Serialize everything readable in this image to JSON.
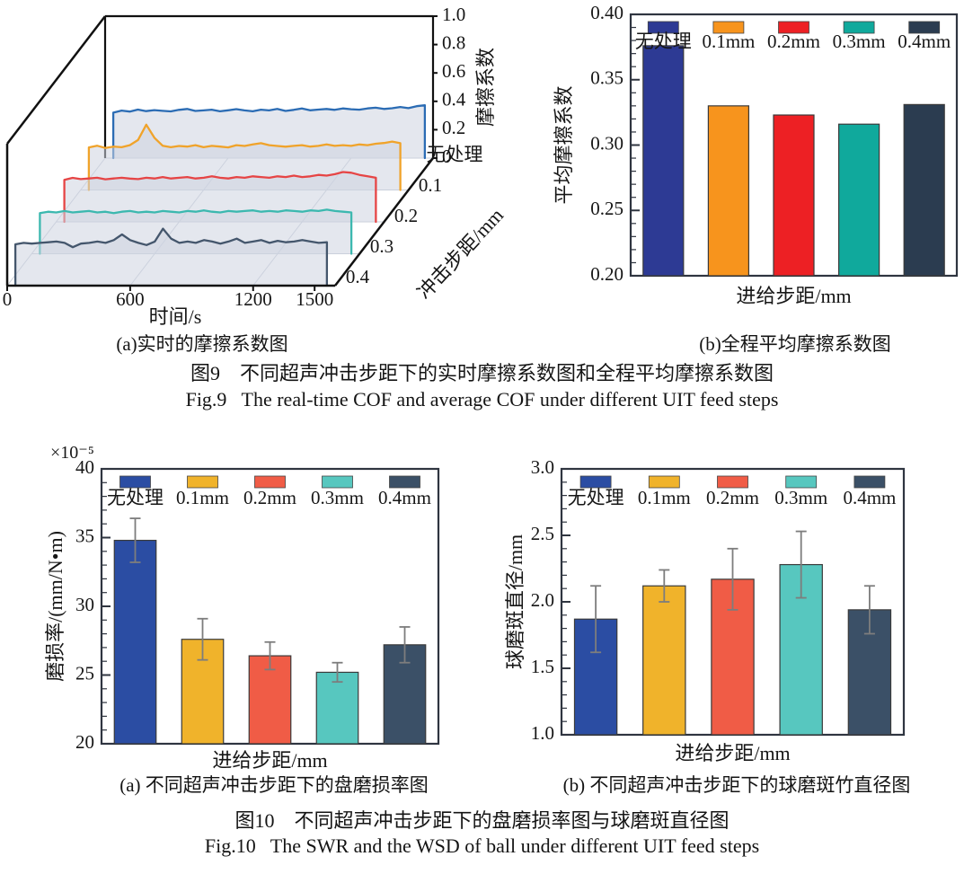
{
  "legend": {
    "labels": [
      "无处理",
      "0.1mm",
      "0.2mm",
      "0.3mm",
      "0.4mm"
    ],
    "palette_top": [
      "#2d3a94",
      "#f7941d",
      "#ed2024",
      "#10a99c",
      "#2b3c50"
    ],
    "palette_bottom": [
      "#2b4da3",
      "#f0b32b",
      "#f05c46",
      "#57c7bf",
      "#3b5067"
    ]
  },
  "captions": {
    "panel3d": "(a)实时的摩擦系数图",
    "panel_avg": "(b)全程平均摩擦系数图",
    "panel_swr": "(a) 不同超声冲击步距下的盘磨损率图",
    "panel_wsd": "(b) 不同超声冲击步距下的球磨斑竹直径图",
    "fig9_zh": "图9　不同超声冲击步距下的实时摩擦系数图和全程平均摩擦系数图",
    "fig9_en": "Fig.9   The real-time COF and average COF under different UIT feed steps",
    "fig10_zh": "图10　不同超声冲击步距下的盘磨损率图与球磨斑直径图",
    "fig10_en": "Fig.10   The SWR and the WSD of ball under different UIT feed steps"
  },
  "chart_data": [
    {
      "id": "realtime_cof",
      "type": "line",
      "subtype": "waterfall3d",
      "title": "(a)实时的摩擦系数图",
      "xlabel": "时间/s",
      "zlabel": "摩擦系数",
      "depth_label": "冲击步距/mm",
      "xlim": [
        0,
        1600
      ],
      "zlim": [
        0,
        1.0
      ],
      "xticks": [
        "0",
        "600",
        "1200",
        "1500"
      ],
      "zticks": [
        "0",
        "0.2",
        "0.4",
        "0.6",
        "0.8",
        "1.0"
      ],
      "depth_ticks": [
        "无处理",
        "0.1",
        "0.2",
        "0.3",
        "0.4"
      ],
      "t_start": 40,
      "t_step": 40,
      "series": [
        {
          "name": "无处理",
          "color": "#2b6cb4",
          "values": [
            0.32,
            0.335,
            0.328,
            0.342,
            0.331,
            0.338,
            0.333,
            0.329,
            0.34,
            0.346,
            0.332,
            0.336,
            0.341,
            0.33,
            0.337,
            0.345,
            0.336,
            0.33,
            0.341,
            0.336,
            0.346,
            0.332,
            0.34,
            0.35,
            0.337,
            0.342,
            0.346,
            0.34,
            0.35,
            0.344,
            0.341,
            0.35,
            0.355,
            0.346,
            0.351,
            0.36,
            0.352,
            0.366,
            0.372
          ]
        },
        {
          "name": "0.1",
          "color": "#f0a32a",
          "values": [
            0.3,
            0.312,
            0.296,
            0.306,
            0.301,
            0.316,
            0.352,
            0.46,
            0.368,
            0.312,
            0.301,
            0.31,
            0.306,
            0.316,
            0.301,
            0.311,
            0.306,
            0.3,
            0.316,
            0.31,
            0.321,
            0.33,
            0.316,
            0.31,
            0.305,
            0.311,
            0.316,
            0.306,
            0.311,
            0.321,
            0.311,
            0.316,
            0.311,
            0.321,
            0.316,
            0.326,
            0.331,
            0.341,
            0.33
          ]
        },
        {
          "name": "0.2",
          "color": "#e64545",
          "values": [
            0.296,
            0.31,
            0.301,
            0.306,
            0.311,
            0.3,
            0.306,
            0.311,
            0.305,
            0.301,
            0.311,
            0.306,
            0.316,
            0.306,
            0.311,
            0.316,
            0.306,
            0.311,
            0.321,
            0.311,
            0.306,
            0.316,
            0.311,
            0.321,
            0.316,
            0.311,
            0.321,
            0.316,
            0.326,
            0.316,
            0.321,
            0.331,
            0.326,
            0.336,
            0.351,
            0.346,
            0.331,
            0.321,
            0.311
          ]
        },
        {
          "name": "0.3",
          "color": "#3cb8af",
          "values": [
            0.286,
            0.296,
            0.291,
            0.301,
            0.291,
            0.296,
            0.301,
            0.291,
            0.296,
            0.286,
            0.296,
            0.301,
            0.291,
            0.296,
            0.291,
            0.301,
            0.296,
            0.291,
            0.301,
            0.296,
            0.306,
            0.296,
            0.291,
            0.301,
            0.296,
            0.301,
            0.306,
            0.296,
            0.301,
            0.296,
            0.306,
            0.301,
            0.296,
            0.306,
            0.301,
            0.311,
            0.301,
            0.296,
            0.291
          ]
        },
        {
          "name": "0.4",
          "color": "#44566c",
          "values": [
            0.291,
            0.301,
            0.296,
            0.301,
            0.306,
            0.311,
            0.301,
            0.271,
            0.296,
            0.301,
            0.311,
            0.301,
            0.321,
            0.361,
            0.321,
            0.301,
            0.286,
            0.311,
            0.401,
            0.331,
            0.301,
            0.311,
            0.301,
            0.321,
            0.311,
            0.296,
            0.311,
            0.331,
            0.301,
            0.311,
            0.321,
            0.301,
            0.316,
            0.306,
            0.311,
            0.321,
            0.311,
            0.301,
            0.306
          ]
        }
      ]
    },
    {
      "id": "avg_cof",
      "type": "bar",
      "title": "(b)全程平均摩擦系数图",
      "xlabel": "进给步距/mm",
      "ylabel": "平均摩擦系数",
      "ylim": [
        0.2,
        0.4
      ],
      "yticks": [
        "0.20",
        "0.25",
        "0.30",
        "0.35",
        "0.40"
      ],
      "ytick_minor": 0.01,
      "categories": [
        "无处理",
        "0.1mm",
        "0.2mm",
        "0.3mm",
        "0.4mm"
      ],
      "values": [
        0.376,
        0.33,
        0.323,
        0.316,
        0.331
      ],
      "colors": [
        "#2d3a94",
        "#f7941d",
        "#ed2024",
        "#10a99c",
        "#2b3c50"
      ]
    },
    {
      "id": "swr",
      "type": "bar",
      "title": "(a) 不同超声冲击步距下的盘磨损率图",
      "xlabel": "进给步距/mm",
      "ylabel": "磨损率/(mm/N•m)",
      "multiplier": "×10⁻⁵",
      "ylim": [
        20,
        40
      ],
      "yticks": [
        "20",
        "25",
        "30",
        "35",
        "40"
      ],
      "ytick_minor": 1,
      "categories": [
        "无处理",
        "0.1mm",
        "0.2mm",
        "0.3mm",
        "0.4mm"
      ],
      "values": [
        34.8,
        27.6,
        26.4,
        25.2,
        27.2
      ],
      "errors": [
        1.6,
        1.5,
        1.0,
        0.7,
        1.3
      ],
      "colors": [
        "#2b4da3",
        "#f0b32b",
        "#f05c46",
        "#57c7bf",
        "#3b5067"
      ]
    },
    {
      "id": "wsd",
      "type": "bar",
      "title": "(b) 不同超声冲击步距下的球磨斑竹直径图",
      "xlabel": "进给步距/mm",
      "ylabel": "球磨斑直径/mm",
      "ylim": [
        1.0,
        3.0
      ],
      "yticks": [
        "1.0",
        "1.5",
        "2.0",
        "2.5",
        "3.0"
      ],
      "ytick_minor": 0.1,
      "categories": [
        "无处理",
        "0.1mm",
        "0.2mm",
        "0.3mm",
        "0.4mm"
      ],
      "values": [
        1.87,
        2.12,
        2.17,
        2.28,
        1.94
      ],
      "errors": [
        0.25,
        0.12,
        0.23,
        0.25,
        0.18
      ],
      "colors": [
        "#2b4da3",
        "#f0b32b",
        "#f05c46",
        "#57c7bf",
        "#3b5067"
      ]
    }
  ]
}
